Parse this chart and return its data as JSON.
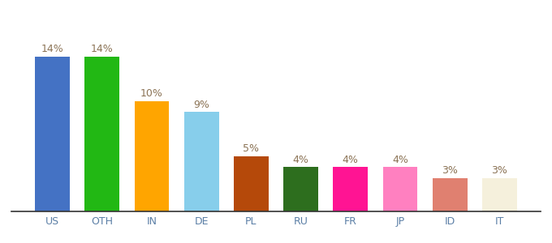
{
  "title": "",
  "categories": [
    "US",
    "OTH",
    "IN",
    "DE",
    "PL",
    "RU",
    "FR",
    "JP",
    "ID",
    "IT"
  ],
  "values": [
    14,
    14,
    10,
    9,
    5,
    4,
    4,
    4,
    3,
    3
  ],
  "bar_colors": [
    "#4472c4",
    "#22b814",
    "#ffa500",
    "#87ceeb",
    "#b5490a",
    "#2d6e1e",
    "#ff1493",
    "#ff80c0",
    "#e08070",
    "#f5f0dc"
  ],
  "label_color": "#8b7355",
  "xtick_color": "#5b7fa6",
  "ylim": [
    0,
    16.5
  ],
  "bar_width": 0.7,
  "figsize": [
    6.8,
    3.0
  ],
  "dpi": 100
}
